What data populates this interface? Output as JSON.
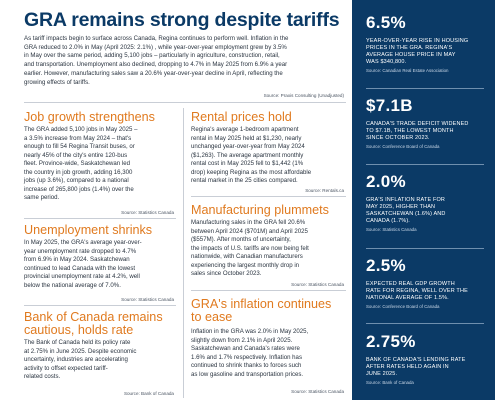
{
  "headline": "GRA remains strong despite tariffs",
  "intro": {
    "lines": [
      "As tariff impacts begin to surface across Canada, Regina continues to perform well. Inflation in the",
      "GRA reduced to 2.0% in May (April 2025: 2.1%) , while year-over-year employment grew by 3.5%",
      "in May over the same period, adding 5,100 jobs – particularly in agriculture, construction, retail,",
      "and transportation. Unemployment also declined, dropping to 4.7% in May 2025 from 6.9% a year",
      "earlier. However, manufacturing sales saw a 20.6% year-over-year decline in April, reflecting the",
      "growing effects of tariffs."
    ],
    "source": "Source: Praxis Consulting (Unadjusted)"
  },
  "job_growth": {
    "title": "Job growth strengthens",
    "lines": [
      "The GRA added 5,100 jobs in May 2025 –",
      "a 3.5% increase from May 2024 – that's",
      "enough to fill 54 Regina Transit buses, or",
      "nearly 45% of the city's entire 120-bus",
      "fleet. Province-wide, Saskatchewan led",
      "the country in job growth, adding 16,300",
      "jobs (up 3.6%), compared to a national",
      "increase of 265,800 jobs (1.4%) over the",
      "same period."
    ],
    "source": "Source: Statistics Canada"
  },
  "unemployment": {
    "title": "Unemployment shrinks",
    "lines": [
      "In May 2025, the GRA's average year-over-",
      "year unemployment rate dropped to 4.7%",
      "from 6.9% in May 2024. Saskatchewan",
      "continued to lead Canada with the lowest",
      "provincial unemployment rate at 4.2%, well",
      "below the national average of 7.0%."
    ],
    "source": "Source: Statistics Canada"
  },
  "bank_of_canada": {
    "title_line1": "Bank of Canada remains",
    "title_line2": "cautious, holds rate",
    "lines": [
      "The Bank of Canada held its policy rate",
      "at 2.75% in June 2025. Despite economic",
      "uncertainty, industries are accelerating",
      "activity to offset expected tariff-",
      "related costs."
    ],
    "source": "Source: Bank of Canada"
  },
  "rental_prices": {
    "title": "Rental prices hold",
    "lines": [
      "Regina's average 1-bedroom apartment",
      "rental in May 2025 held at $1,230, nearly",
      "unchanged year-over-year from May 2024",
      "($1,263). The average apartment monthly",
      "rental cost in May 2025 fell to $1,442 (1%",
      "drop) keeping Regina as the most affordable",
      "rental market in the 25 cities compared."
    ],
    "source": "Source: Rentals.ca"
  },
  "manufacturing": {
    "title": "Manufacturing plummets",
    "lines": [
      "Manufacturing sales in the GRA fell 20.6%",
      "between April 2024 ($701M) and April 2025",
      "($557M). After months of uncertainty,",
      "the impacts of U.S. tariffs are now being felt",
      "nationwide, with Canadian manufacturers",
      "experiencing the largest monthly drop in",
      "sales since October 2023."
    ],
    "source": "Source: Statistics Canada"
  },
  "inflation": {
    "title_line1": "GRA's inflation continues",
    "title_line2": "to ease",
    "lines": [
      "Inflation in the GRA was 2.0% in May 2025,",
      "slightly down from 2.1% in April 2025.",
      "Saskatchewan and Canada's rates were",
      "1.6% and 1.7% respectively. Inflation has",
      "continued to shrink thanks to forces such",
      "as low gasoline and transportation prices."
    ],
    "source": "Source: Statistics Canada"
  },
  "sidebar": {
    "stats": [
      {
        "value": "6.5%",
        "desc": [
          "Year-over-year rise in housing",
          "prices in the GRA. Regina's",
          "average house price in May",
          "was $340,800."
        ],
        "source": "Source: Canadian Real Estate Association"
      },
      {
        "value": "$7.1B",
        "desc": [
          "Canada's trade deficit widened",
          "to $7.1B, the lowest month",
          "since October 2023."
        ],
        "source": "Source: Conference Board of Canada"
      },
      {
        "value": "2.0%",
        "desc": [
          "GRA's inflation rate for",
          "May 2025, higher than",
          "Saskatchewan (1.6%) and",
          "Canada (1.7%)."
        ],
        "source": "Source: Statistics Canada"
      },
      {
        "value": "2.5%",
        "desc": [
          "Expected real GDP growth",
          "rate for Regina, well over the",
          "national average of 1.5%."
        ],
        "source": "Source: Conference Board of Canada"
      },
      {
        "value": "2.75%",
        "desc": [
          "Bank of Canada's lending rate",
          "after rates held again in",
          "June 2025."
        ],
        "source": "Source: Bank of Canada"
      }
    ]
  }
}
